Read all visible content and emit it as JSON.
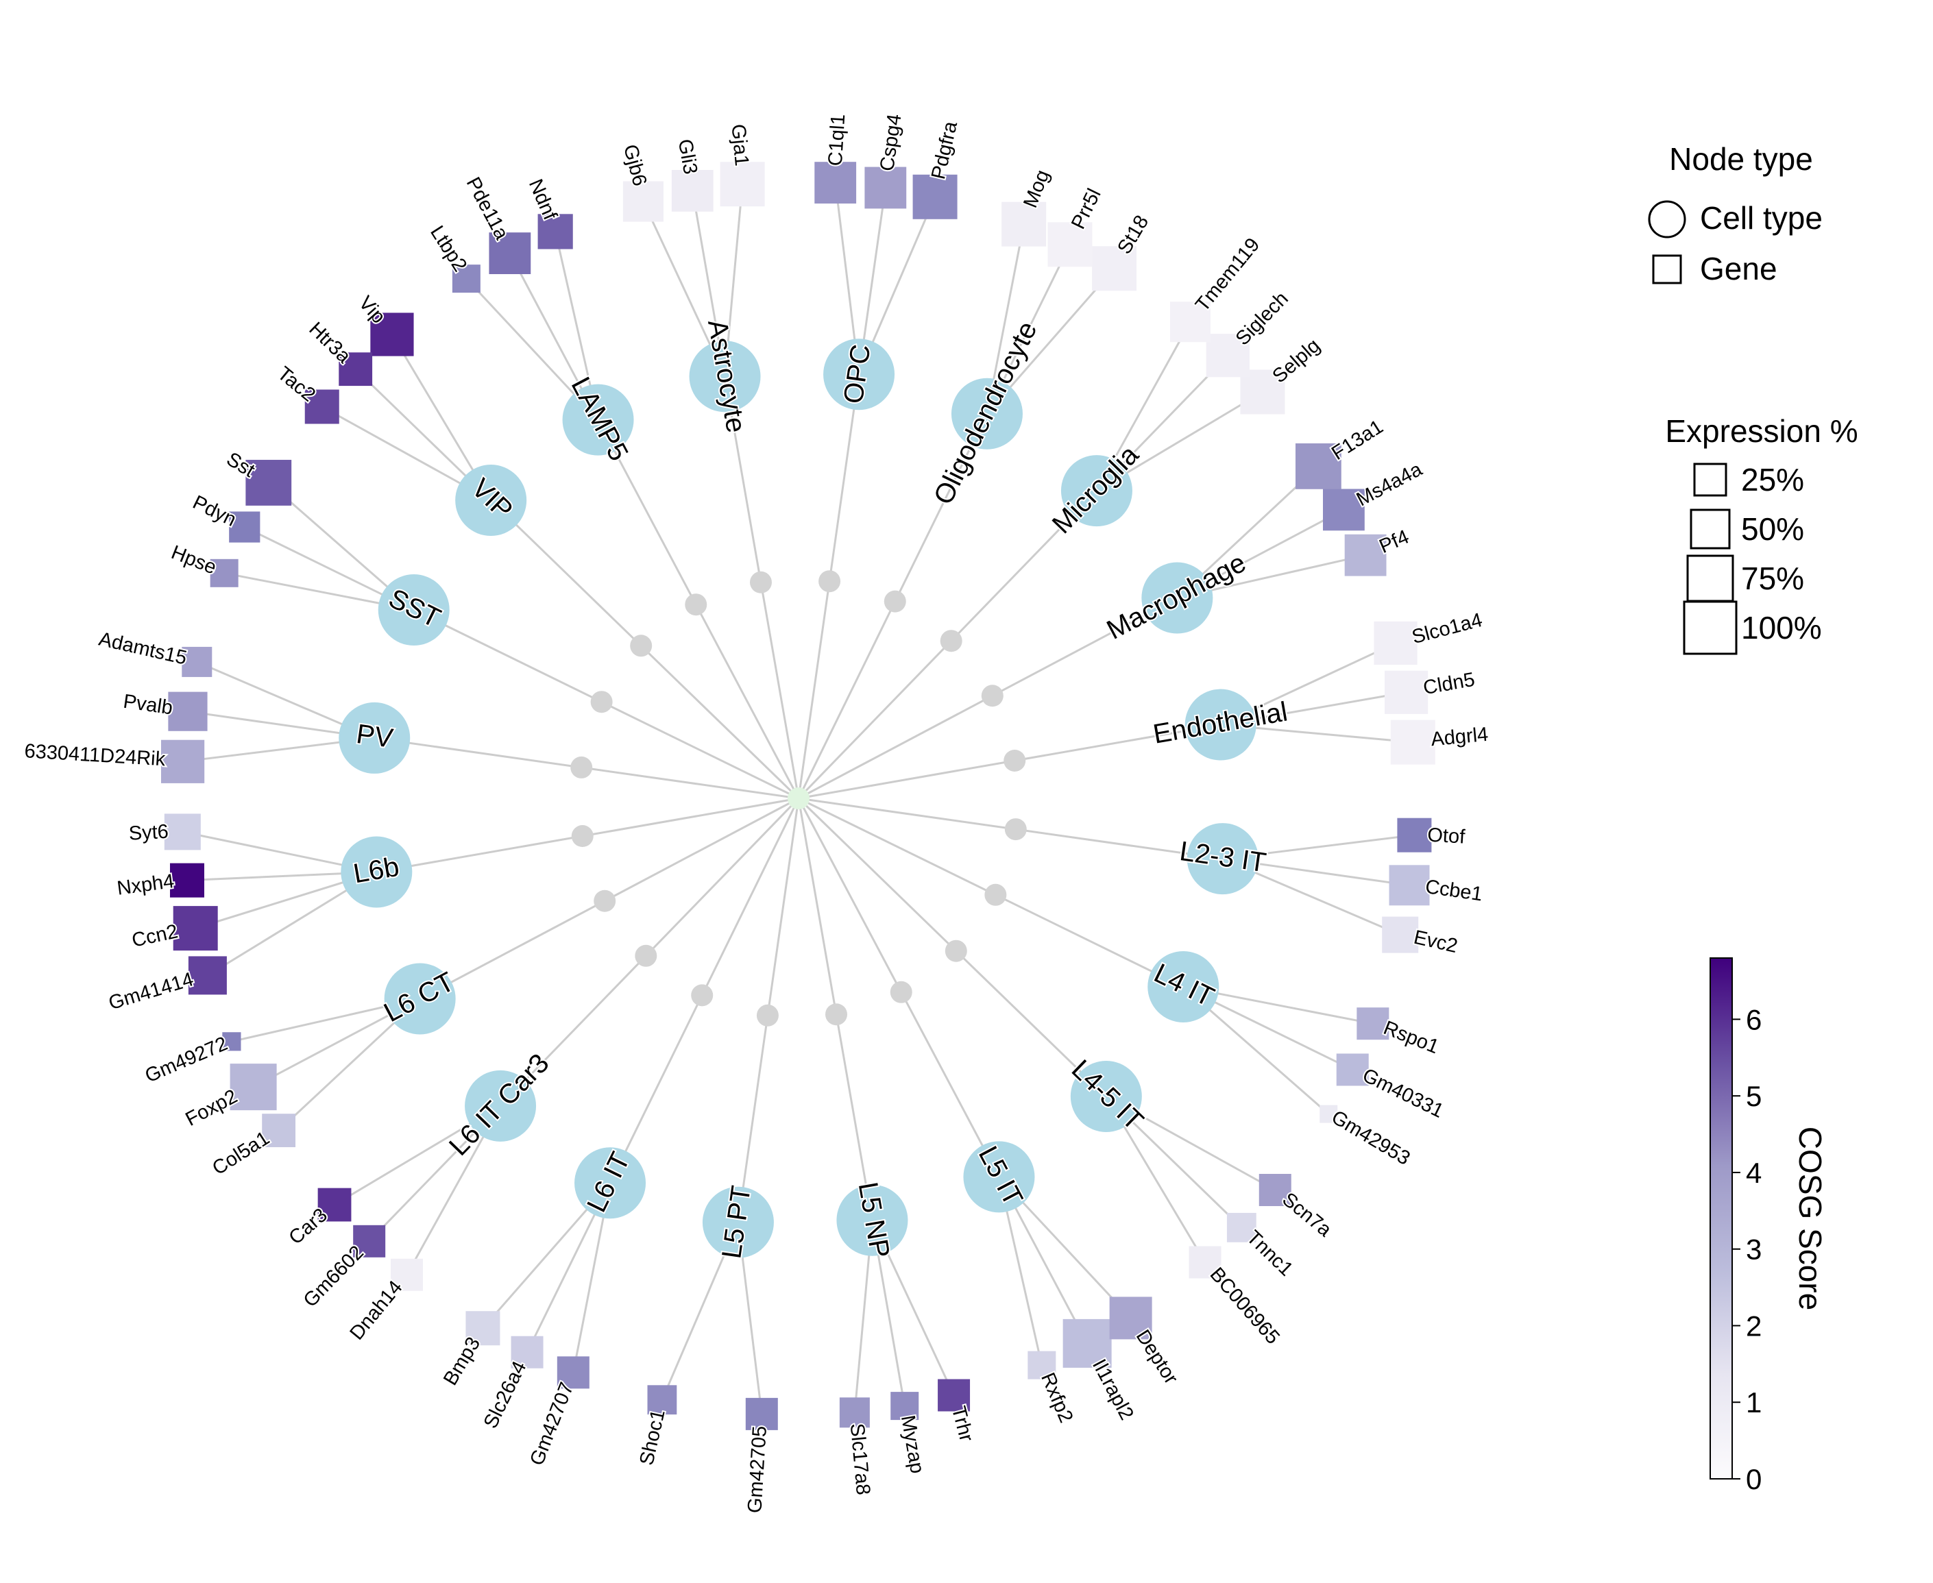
{
  "legend": {
    "node_type_title": "Node type",
    "node_types": [
      {
        "shape": "circle",
        "label": "Cell type"
      },
      {
        "shape": "square",
        "label": "Gene"
      }
    ],
    "expression_title": "Expression %",
    "expression_levels": [
      {
        "label": "25%",
        "value": 0.25
      },
      {
        "label": "50%",
        "value": 0.5
      },
      {
        "label": "75%",
        "value": 0.75
      },
      {
        "label": "100%",
        "value": 1.0
      }
    ],
    "colorbar_label": "COSG Score",
    "colorbar_ticks": [
      "0",
      "1",
      "2",
      "3",
      "4",
      "5",
      "6"
    ],
    "colorbar_max": 6.8
  },
  "colors": {
    "cell_node": "#add8e6",
    "branch_node": "#d3d3d3",
    "center_node": "#e0f5e0",
    "edge": "#cccccc",
    "colormap_low": "#fcfbfd",
    "colormap_high": "#3f007d"
  },
  "cell_types": [
    {
      "name": "L2-3 IT",
      "genes": [
        {
          "name": "Evc2",
          "expr": 0.55,
          "score": 1.3
        },
        {
          "name": "Ccbe1",
          "expr": 0.65,
          "score": 2.4
        },
        {
          "name": "Otof",
          "expr": 0.5,
          "score": 4.2
        }
      ]
    },
    {
      "name": "L4 IT",
      "genes": [
        {
          "name": "Gm42953",
          "expr": 0.1,
          "score": 1.0
        },
        {
          "name": "Gm40331",
          "expr": 0.45,
          "score": 2.6
        },
        {
          "name": "Rspo1",
          "expr": 0.45,
          "score": 2.9
        }
      ]
    },
    {
      "name": "L4-5 IT",
      "genes": [
        {
          "name": "BC006965",
          "expr": 0.45,
          "score": 0.9
        },
        {
          "name": "Tnnc1",
          "expr": 0.38,
          "score": 1.7
        },
        {
          "name": "Scn7a",
          "expr": 0.45,
          "score": 3.3
        }
      ]
    },
    {
      "name": "L5 IT",
      "genes": [
        {
          "name": "Rxfp2",
          "expr": 0.35,
          "score": 1.9
        },
        {
          "name": "Il1rapl2",
          "expr": 0.85,
          "score": 2.5
        },
        {
          "name": "Deptor",
          "expr": 0.7,
          "score": 3.1
        }
      ]
    },
    {
      "name": "L5 NP",
      "genes": [
        {
          "name": "Slc17a8",
          "expr": 0.4,
          "score": 3.5
        },
        {
          "name": "Myzap",
          "expr": 0.35,
          "score": 3.8
        },
        {
          "name": "Trhr",
          "expr": 0.45,
          "score": 5.3
        }
      ]
    },
    {
      "name": "L5 PT",
      "genes": [
        {
          "name": "Shoc1",
          "expr": 0.38,
          "score": 3.8
        },
        {
          "name": "Gm42705",
          "expr": 0.45,
          "score": 4.0
        }
      ]
    },
    {
      "name": "L6 IT",
      "genes": [
        {
          "name": "Bmp3",
          "expr": 0.5,
          "score": 1.8
        },
        {
          "name": "Slc26a4",
          "expr": 0.45,
          "score": 2.1
        },
        {
          "name": "Gm42707",
          "expr": 0.45,
          "score": 3.8
        }
      ]
    },
    {
      "name": "L6 IT Car3",
      "genes": [
        {
          "name": "Car3",
          "expr": 0.48,
          "score": 5.7
        },
        {
          "name": "Gm6602",
          "expr": 0.45,
          "score": 5.1
        },
        {
          "name": "Dnah14",
          "expr": 0.45,
          "score": 0.8
        }
      ]
    },
    {
      "name": "L6 CT",
      "genes": [
        {
          "name": "Gm49272",
          "expr": 0.12,
          "score": 4.1
        },
        {
          "name": "Foxp2",
          "expr": 0.8,
          "score": 2.7
        },
        {
          "name": "Col5a1",
          "expr": 0.48,
          "score": 2.3
        }
      ]
    },
    {
      "name": "L6b",
      "genes": [
        {
          "name": "Syt6",
          "expr": 0.55,
          "score": 2.0
        },
        {
          "name": "Nxph4",
          "expr": 0.5,
          "score": 6.7
        },
        {
          "name": "Ccn2",
          "expr": 0.75,
          "score": 5.6
        },
        {
          "name": "Gm41414",
          "expr": 0.6,
          "score": 5.4
        }
      ]
    },
    {
      "name": "PV",
      "genes": [
        {
          "name": "Adamts15",
          "expr": 0.4,
          "score": 3.2
        },
        {
          "name": "Pvalb",
          "expr": 0.62,
          "score": 3.4
        },
        {
          "name": "6330411D24Rik",
          "expr": 0.72,
          "score": 3.0
        }
      ]
    },
    {
      "name": "SST",
      "genes": [
        {
          "name": "Sst",
          "expr": 0.78,
          "score": 4.9
        },
        {
          "name": "Pdyn",
          "expr": 0.42,
          "score": 4.2
        },
        {
          "name": "Hpse",
          "expr": 0.35,
          "score": 3.6
        }
      ]
    },
    {
      "name": "VIP",
      "genes": [
        {
          "name": "Vip",
          "expr": 0.72,
          "score": 6.0
        },
        {
          "name": "Htr3a",
          "expr": 0.48,
          "score": 5.6
        },
        {
          "name": "Tac2",
          "expr": 0.5,
          "score": 5.3
        }
      ]
    },
    {
      "name": "LAMP5",
      "genes": [
        {
          "name": "Ndnf",
          "expr": 0.52,
          "score": 4.8
        },
        {
          "name": "Pde11a",
          "expr": 0.68,
          "score": 4.5
        },
        {
          "name": "Ltbp2",
          "expr": 0.35,
          "score": 3.9
        }
      ]
    },
    {
      "name": "Astrocyte",
      "genes": [
        {
          "name": "Gja1",
          "expr": 0.75,
          "score": 0.7
        },
        {
          "name": "Gli3",
          "expr": 0.68,
          "score": 0.9
        },
        {
          "name": "Gjb6",
          "expr": 0.65,
          "score": 0.8
        }
      ]
    },
    {
      "name": "OPC",
      "genes": [
        {
          "name": "Pdgfra",
          "expr": 0.75,
          "score": 3.9
        },
        {
          "name": "Cspg4",
          "expr": 0.68,
          "score": 3.3
        },
        {
          "name": "C1ql1",
          "expr": 0.68,
          "score": 3.6
        }
      ]
    },
    {
      "name": "Oligodendrocyte",
      "genes": [
        {
          "name": "St18",
          "expr": 0.75,
          "score": 0.7
        },
        {
          "name": "Prr5l",
          "expr": 0.75,
          "score": 0.6
        },
        {
          "name": "Mog",
          "expr": 0.75,
          "score": 0.8
        }
      ]
    },
    {
      "name": "Microglia",
      "genes": [
        {
          "name": "Selplg",
          "expr": 0.75,
          "score": 0.8
        },
        {
          "name": "Siglech",
          "expr": 0.72,
          "score": 0.7
        },
        {
          "name": "Tmem119",
          "expr": 0.65,
          "score": 0.6
        }
      ]
    },
    {
      "name": "Macrophage",
      "genes": [
        {
          "name": "Pf4",
          "expr": 0.68,
          "score": 2.7
        },
        {
          "name": "Ms4a4a",
          "expr": 0.68,
          "score": 3.9
        },
        {
          "name": "F13a1",
          "expr": 0.78,
          "score": 3.5
        }
      ]
    },
    {
      "name": "Endothelial",
      "genes": [
        {
          "name": "Adgrl4",
          "expr": 0.75,
          "score": 0.6
        },
        {
          "name": "Cldn5",
          "expr": 0.72,
          "score": 0.7
        },
        {
          "name": "Slco1a4",
          "expr": 0.72,
          "score": 0.7
        }
      ]
    }
  ]
}
